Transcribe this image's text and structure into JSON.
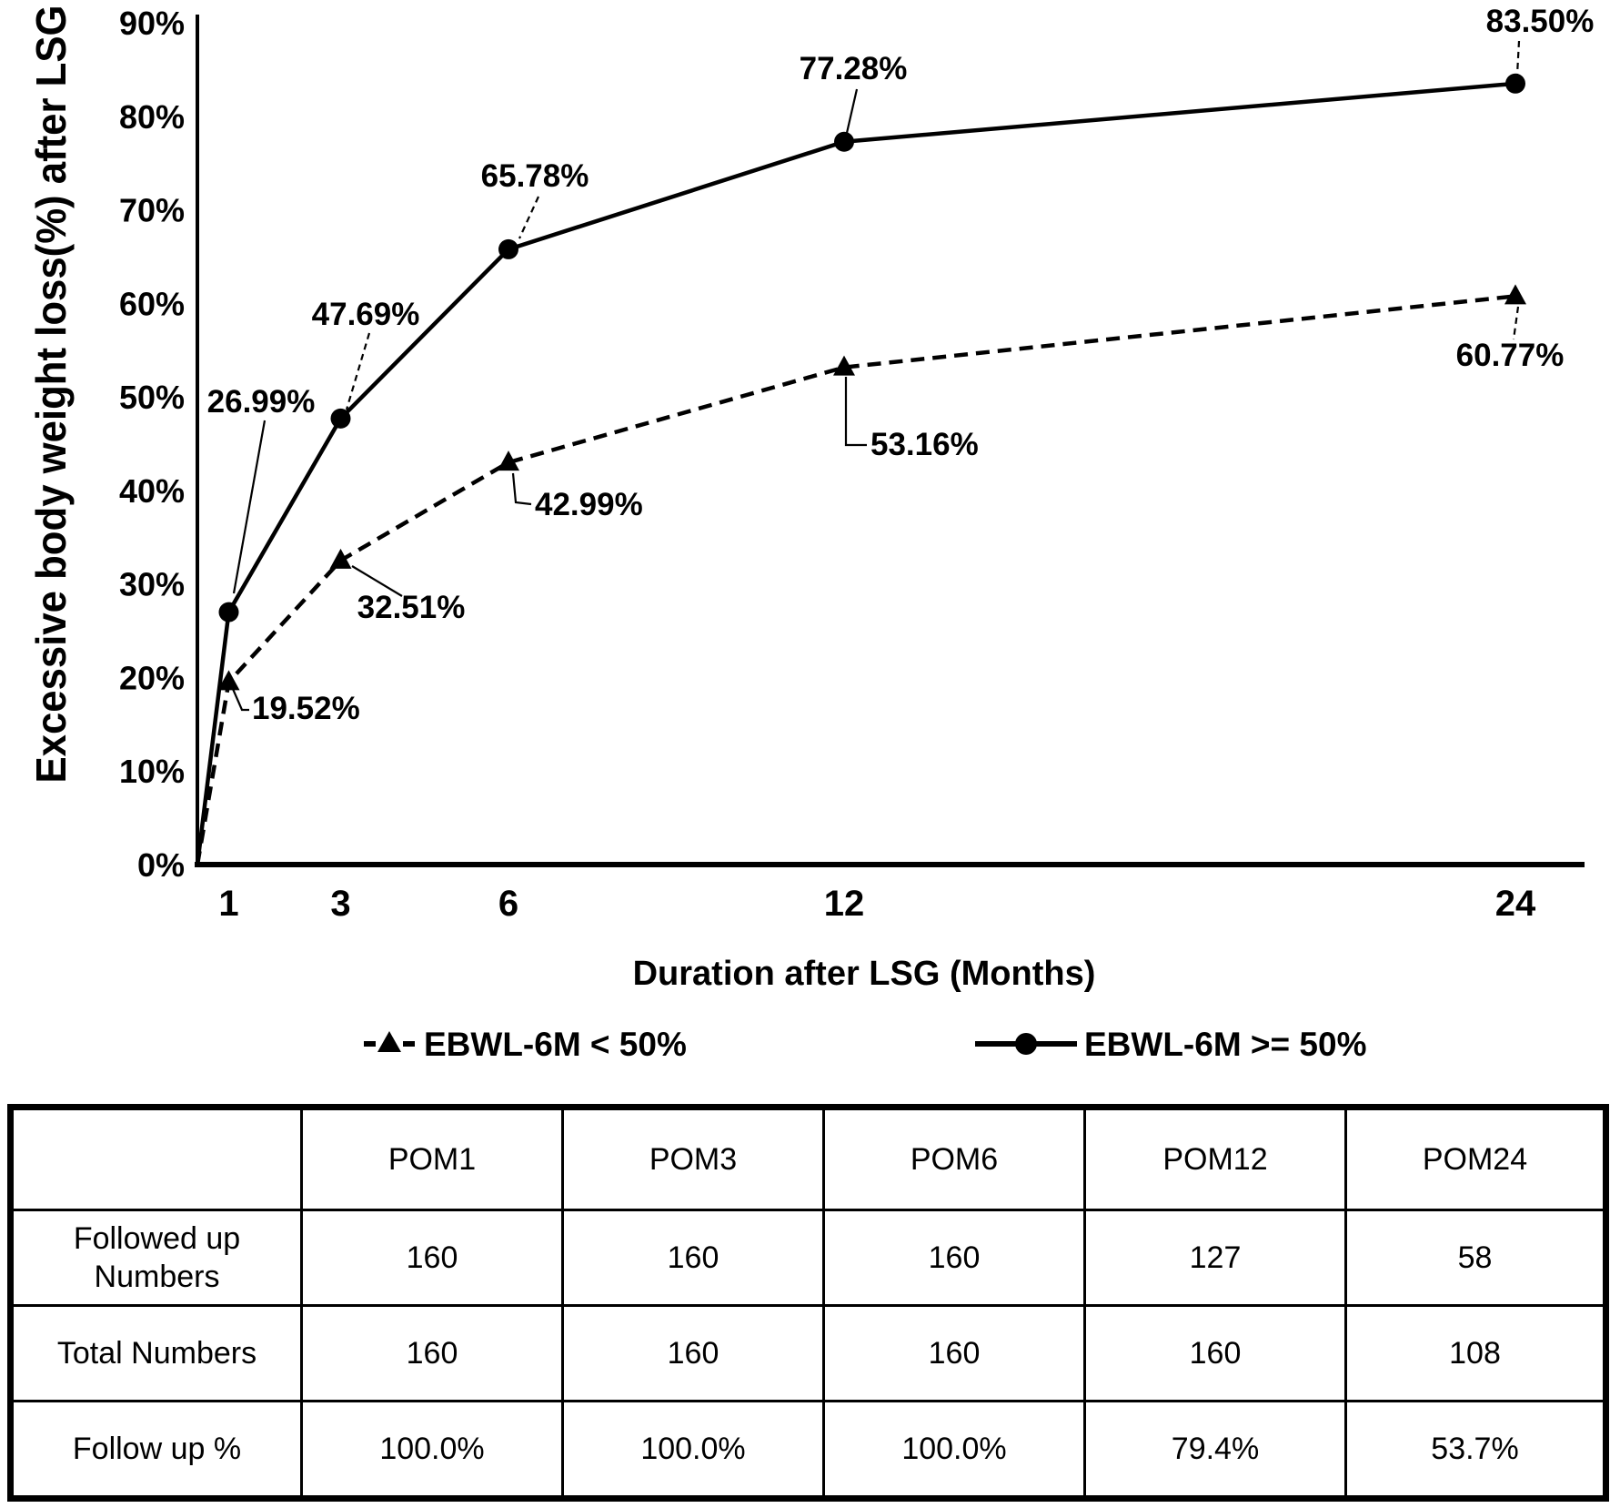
{
  "colors": {
    "ink": "#000000",
    "background": "#ffffff"
  },
  "chart_data": {
    "type": "line",
    "title": "",
    "xlabel": "Duration after LSG (Months)",
    "ylabel": "Excessive body weight loss(%) after LSG",
    "x": [
      1,
      3,
      6,
      12,
      24
    ],
    "x_ticks": [
      "1",
      "3",
      "6",
      "12",
      "24"
    ],
    "y_ticks": [
      "0%",
      "10%",
      "20%",
      "30%",
      "40%",
      "50%",
      "60%",
      "70%",
      "80%",
      "90%"
    ],
    "ylim": [
      0,
      90
    ],
    "grid": false,
    "legend_position": "bottom",
    "series": [
      {
        "name": "EBWL-6M < 50%",
        "style": "dashed",
        "marker": "triangle",
        "color": "#000000",
        "values": [
          19.52,
          32.51,
          42.99,
          53.16,
          60.77
        ],
        "point_labels": [
          "19.52%",
          "32.51%",
          "42.99%",
          "53.16%",
          "60.77%"
        ]
      },
      {
        "name": "EBWL-6M >= 50%",
        "style": "solid",
        "marker": "circle",
        "color": "#000000",
        "values": [
          26.99,
          47.69,
          65.78,
          77.28,
          83.5
        ],
        "point_labels": [
          "26.99%",
          "47.69%",
          "65.78%",
          "77.28%",
          "83.50%"
        ]
      }
    ]
  },
  "table": {
    "header": [
      "",
      "POM1",
      "POM3",
      "POM6",
      "POM12",
      "POM24"
    ],
    "rows": [
      {
        "label": "Followed up Numbers",
        "values": [
          "160",
          "160",
          "160",
          "127",
          "58"
        ]
      },
      {
        "label": "Total Numbers",
        "values": [
          "160",
          "160",
          "160",
          "160",
          "108"
        ]
      },
      {
        "label": "Follow up %",
        "values": [
          "100.0%",
          "100.0%",
          "100.0%",
          "79.4%",
          "53.7%"
        ]
      }
    ]
  }
}
